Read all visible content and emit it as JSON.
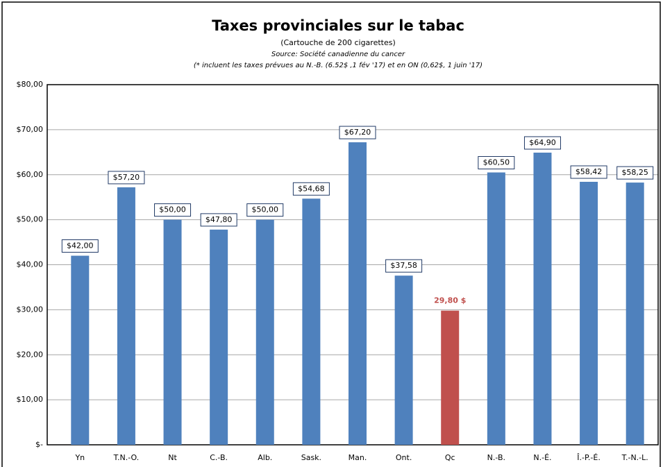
{
  "chart_data": {
    "type": "bar",
    "title": "Taxes provinciales sur le tabac",
    "subtitle": "(Cartouche de 200 cigarettes)",
    "source": "Source: Société canadienne du cancer",
    "note": "(* incluent les taxes prévues au N.-B. (6.52$ ,1 fév '17) et en ON (0,62$, 1 juin '17)",
    "categories": [
      "Yn",
      "T.N.-O.",
      "Nt",
      "C.-B.",
      "Alb.",
      "Sask.",
      "Man.",
      "Ont.",
      "Qc",
      "N.-B.",
      "N.-É.",
      "Î.-P.-É.",
      "T.-N.-L."
    ],
    "values": [
      42.0,
      57.2,
      50.0,
      47.8,
      50.0,
      54.68,
      67.2,
      37.58,
      29.8,
      60.5,
      64.9,
      58.42,
      58.25
    ],
    "value_labels": [
      "$42,00",
      "$57,20",
      "$50,00",
      "$47,80",
      "$50,00",
      "$54,68",
      "$67,20",
      "$37,58",
      "29,80 $",
      "$60,50",
      "$64,90",
      "$58,42",
      "$58,25"
    ],
    "colors": [
      "#4f81bd",
      "#4f81bd",
      "#4f81bd",
      "#4f81bd",
      "#4f81bd",
      "#4f81bd",
      "#4f81bd",
      "#4f81bd",
      "#c0504d",
      "#4f81bd",
      "#4f81bd",
      "#4f81bd",
      "#4f81bd"
    ],
    "ylim": [
      0,
      80
    ],
    "yticks": [
      {
        "value": 0,
        "label": "$-"
      },
      {
        "value": 10,
        "label": "$10,00"
      },
      {
        "value": 20,
        "label": "$20,00"
      },
      {
        "value": 30,
        "label": "$30,00"
      },
      {
        "value": 40,
        "label": "$40,00"
      },
      {
        "value": 50,
        "label": "$50,00"
      },
      {
        "value": 60,
        "label": "$60,00"
      },
      {
        "value": 70,
        "label": "$70,00"
      },
      {
        "value": 80,
        "label": "$80,00"
      }
    ],
    "grid": true
  }
}
